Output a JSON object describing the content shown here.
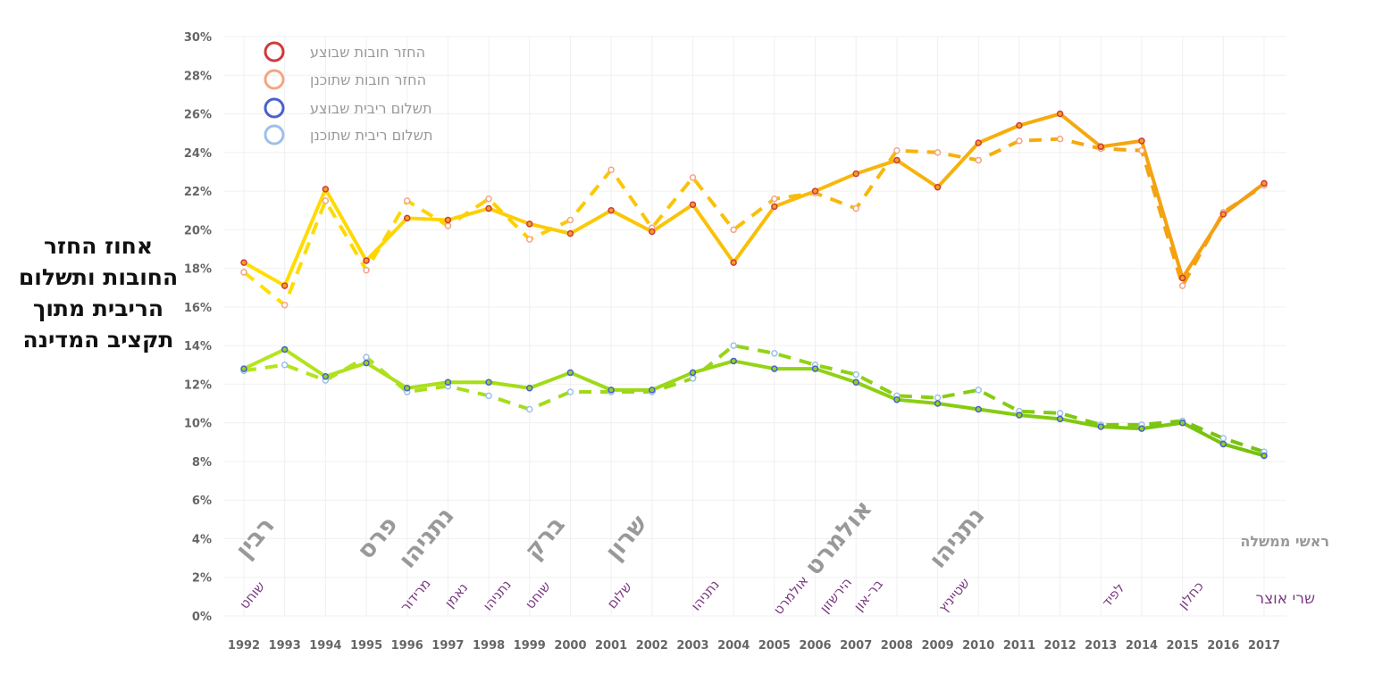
{
  "chart_data": {
    "type": "line",
    "title": "",
    "ylabel": "אחוז החזר החובות ותשלום הריבית מתוך תקציב המדינה",
    "xlabel": "",
    "ylim": [
      0,
      30
    ],
    "yticks": [
      "0%",
      "2%",
      "4%",
      "6%",
      "8%",
      "10%",
      "12%",
      "14%",
      "16%",
      "18%",
      "20%",
      "22%",
      "24%",
      "26%",
      "28%",
      "30%"
    ],
    "grid": true,
    "legend_position": "top-left",
    "x": [
      1992,
      1993,
      1994,
      1995,
      1996,
      1997,
      1998,
      1999,
      2000,
      2001,
      2002,
      2003,
      2004,
      2005,
      2006,
      2007,
      2008,
      2009,
      2010,
      2011,
      2012,
      2013,
      2014,
      2015,
      2016,
      2017
    ],
    "series": [
      {
        "name": "החזר חובות שבוצע",
        "style": "solid",
        "colors": [
          "#ffe000",
          "#f39c12"
        ],
        "marker_stroke": "#d0393b",
        "marker_fill": "#f2a020",
        "values": [
          18.3,
          17.1,
          22.1,
          18.4,
          20.6,
          20.5,
          21.1,
          20.3,
          19.8,
          21.0,
          19.9,
          21.3,
          18.3,
          21.2,
          22.0,
          22.9,
          23.6,
          22.2,
          24.5,
          25.4,
          26.0,
          24.3,
          24.6,
          17.5,
          20.8,
          22.4
        ]
      },
      {
        "name": "החזר חובות שתוכנן",
        "style": "dashed",
        "colors": [
          "#ffe000",
          "#f39c12"
        ],
        "marker_stroke": "#f4a582",
        "marker_fill": "#ffffff",
        "values": [
          17.8,
          16.1,
          21.5,
          17.9,
          21.5,
          20.2,
          21.6,
          19.5,
          20.5,
          23.1,
          20.1,
          22.7,
          20.0,
          21.6,
          21.9,
          21.1,
          24.1,
          24.0,
          23.6,
          24.6,
          24.7,
          24.2,
          24.1,
          17.1,
          20.9,
          22.3
        ]
      },
      {
        "name": "תשלום ריבית שבוצע",
        "style": "solid",
        "colors": [
          "#b5e61d",
          "#74c20e"
        ],
        "marker_stroke": "#4a5fd0",
        "marker_fill": "#8fd41a",
        "values": [
          12.8,
          13.8,
          12.4,
          13.1,
          11.8,
          12.1,
          12.1,
          11.8,
          12.6,
          11.7,
          11.7,
          12.6,
          13.2,
          12.8,
          12.8,
          12.1,
          11.2,
          11.0,
          10.7,
          10.4,
          10.2,
          9.8,
          9.7,
          10.0,
          8.9,
          8.3
        ]
      },
      {
        "name": "תשלום ריבית שתוכנן",
        "style": "dashed",
        "colors": [
          "#b5e61d",
          "#74c20e"
        ],
        "marker_stroke": "#9dc0e8",
        "marker_fill": "#ffffff",
        "values": [
          12.7,
          13.0,
          12.2,
          13.4,
          11.6,
          11.9,
          11.4,
          10.7,
          11.6,
          11.6,
          11.6,
          12.3,
          14.0,
          13.6,
          13.0,
          12.5,
          11.4,
          11.3,
          11.7,
          10.6,
          10.5,
          9.9,
          9.9,
          10.1,
          9.2,
          8.5
        ]
      }
    ],
    "annotations": {
      "prime_ministers_label": "ראשי ממשלה",
      "finance_ministers_label": "שרי אוצר",
      "prime_ministers": [
        {
          "name": "רבין",
          "year": 1992.2
        },
        {
          "name": "פרס",
          "year": 1995.2
        },
        {
          "name": "נתניהו",
          "year": 1996.4
        },
        {
          "name": "ברק",
          "year": 1999.3
        },
        {
          "name": "שרון",
          "year": 2001.3
        },
        {
          "name": "אולמרט",
          "year": 2006.5
        },
        {
          "name": "נתניהו",
          "year": 2009.4
        }
      ],
      "finance_ministers": [
        {
          "name": "שוחט",
          "year": 1992.2
        },
        {
          "name": "מרידור",
          "year": 1996.2
        },
        {
          "name": "נאמן",
          "year": 1997.2
        },
        {
          "name": "נתניהו",
          "year": 1998.2
        },
        {
          "name": "שוחט",
          "year": 1999.2
        },
        {
          "name": "שלום",
          "year": 2001.2
        },
        {
          "name": "נתניהו",
          "year": 2003.3
        },
        {
          "name": "אולמרט",
          "year": 2005.4
        },
        {
          "name": "הירשזון",
          "year": 2006.5
        },
        {
          "name": "בר-און",
          "year": 2007.3
        },
        {
          "name": "שטייניץ",
          "year": 2009.4
        },
        {
          "name": "לפיד",
          "year": 2013.3
        },
        {
          "name": "כחלון",
          "year": 2015.2
        }
      ]
    }
  }
}
